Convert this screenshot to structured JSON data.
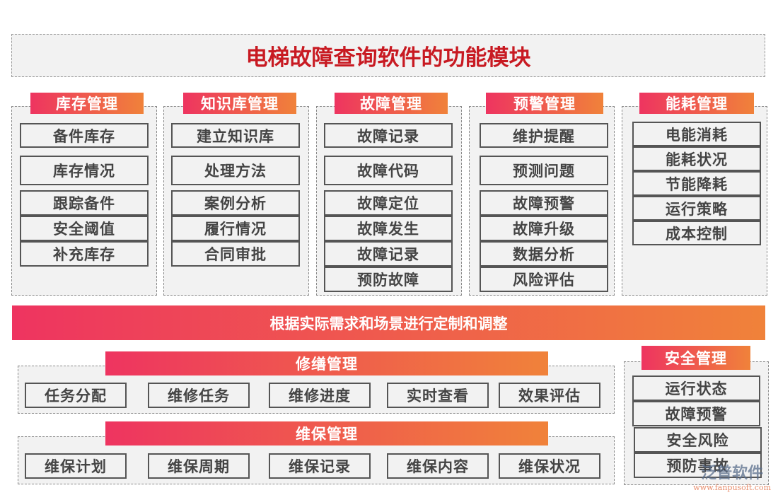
{
  "title": "电梯故障查询软件的功能模块",
  "modules": [
    {
      "name": "库存管理",
      "items": [
        "备件库存",
        "库存情况",
        "跟踪备件",
        "安全阈值",
        "补充库存"
      ]
    },
    {
      "name": "知识库管理",
      "items": [
        "建立知识库",
        "处理方法",
        "案例分析",
        "履行情况",
        "合同审批"
      ]
    },
    {
      "name": "故障管理",
      "items": [
        "故障记录",
        "故障代码",
        "故障定位",
        "故障发生",
        "故障记录",
        "预防故障"
      ]
    },
    {
      "name": "预警管理",
      "items": [
        "维护提醒",
        "预测问题",
        "故障预警",
        "故障升级",
        "数据分析",
        "风险评估"
      ]
    },
    {
      "name": "能耗管理",
      "items": [
        "电能消耗",
        "能耗状况",
        "节能降耗",
        "运行策略",
        "成本控制"
      ]
    }
  ],
  "banner": "根据实际需求和场景进行定制和调整",
  "bottom_modules": [
    {
      "name": "修缮管理",
      "items": [
        "任务分配",
        "维修任务",
        "维修进度",
        "实时查看",
        "效果评估"
      ]
    },
    {
      "name": "维保管理",
      "items": [
        "维保计划",
        "维保周期",
        "维保记录",
        "维保内容",
        "维保状况"
      ]
    }
  ],
  "safety": {
    "name": "安全管理",
    "items": [
      "运行状态",
      "故障预警",
      "安全风险",
      "预防事故"
    ]
  },
  "watermark": {
    "brand": "泛普软件",
    "url": "www.fanpusoft.com"
  },
  "colors": {
    "title": "#c81a22",
    "gradient_start": "#ee3460",
    "gradient_end": "#f0823a"
  }
}
